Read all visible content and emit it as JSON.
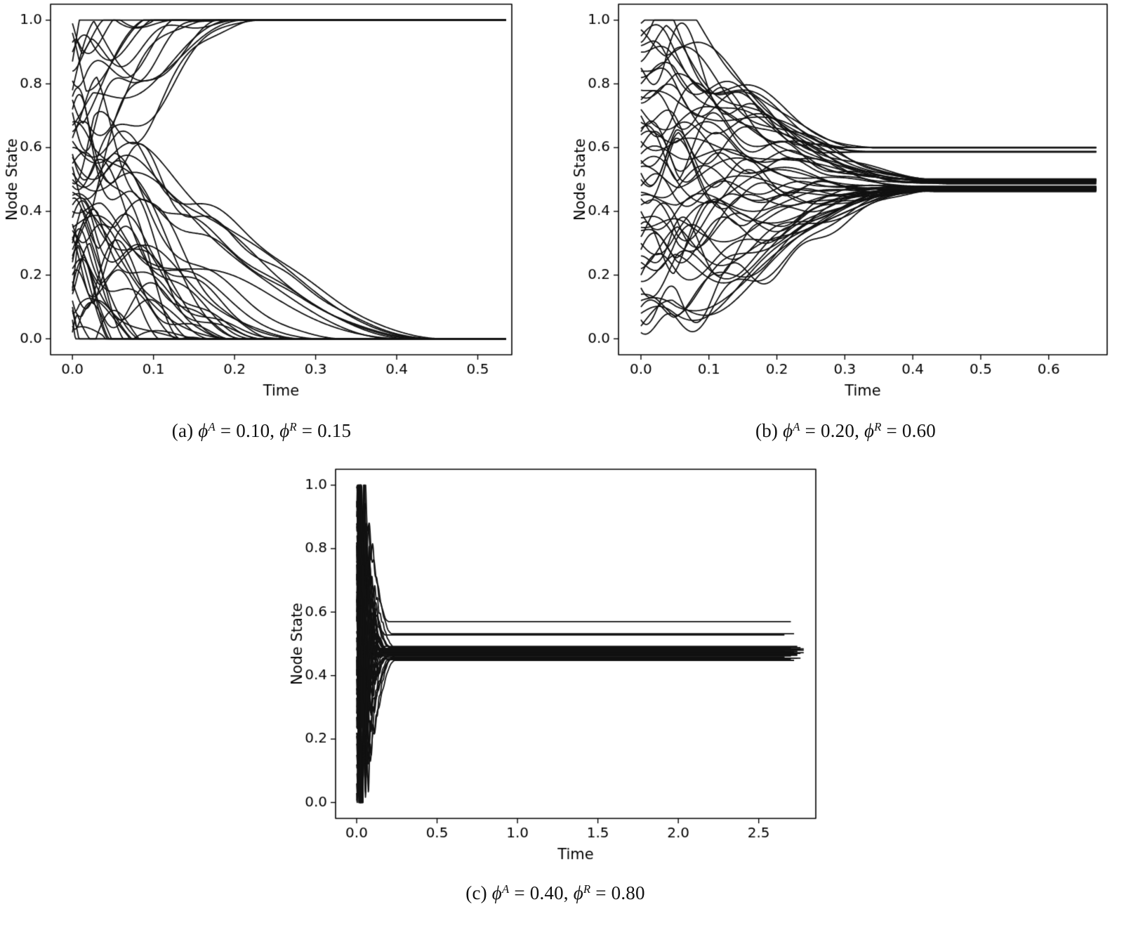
{
  "figure": {
    "background": "#ffffff",
    "text_color": "#000000"
  },
  "chart_data": [
    {
      "type": "line",
      "id": "a",
      "title": "",
      "xlabel": "Time",
      "ylabel": "Node State",
      "xlim": [
        -0.027,
        0.542
      ],
      "ylim": [
        -0.05,
        1.05
      ],
      "xticks": [
        0.0,
        0.1,
        0.2,
        0.3,
        0.4,
        0.5
      ],
      "yticks": [
        0.0,
        0.2,
        0.4,
        0.6,
        0.8,
        1.0
      ],
      "grid": false,
      "legend": "none",
      "caption_segments": [
        {
          "text": "(a) "
        },
        {
          "text": "ϕ",
          "style": "italic"
        },
        {
          "text": "A",
          "style": "sup-italic"
        },
        {
          "text": " = 0.10, "
        },
        {
          "text": "ϕ",
          "style": "italic"
        },
        {
          "text": "R",
          "style": "sup-italic"
        },
        {
          "text": " = 0.15"
        }
      ],
      "style": {
        "color": "#111111",
        "width": 1.8
      },
      "seed": 7,
      "samples": 500,
      "t_end": 0.535,
      "wiggle": {
        "amp": 0.16,
        "tau": 0.085,
        "freq": 48
      },
      "margins": {
        "l": 72,
        "r": 16,
        "t": 6,
        "b": 70
      },
      "trajectories": [
        [
          0.99,
          1,
          0.1
        ],
        [
          0.96,
          1,
          0.14
        ],
        [
          0.93,
          1,
          0.08
        ],
        [
          0.9,
          1,
          0.17
        ],
        [
          0.87,
          1,
          0.12
        ],
        [
          0.84,
          1,
          0.2
        ],
        [
          0.81,
          1,
          0.15
        ],
        [
          0.78,
          1,
          0.22
        ],
        [
          0.75,
          1,
          0.11
        ],
        [
          0.71,
          1,
          0.18
        ],
        [
          0.67,
          1,
          0.21
        ],
        [
          0.63,
          1,
          0.16
        ],
        [
          0.58,
          1,
          0.23
        ],
        [
          0.54,
          1,
          0.19
        ],
        [
          0.49,
          1,
          0.22
        ],
        [
          0.02,
          0,
          0.05
        ],
        [
          0.04,
          0,
          0.09
        ],
        [
          0.06,
          0,
          0.12
        ],
        [
          0.08,
          0,
          0.07
        ],
        [
          0.1,
          0,
          0.15
        ],
        [
          0.12,
          0,
          0.1
        ],
        [
          0.14,
          0,
          0.18
        ],
        [
          0.16,
          0,
          0.13
        ],
        [
          0.18,
          0,
          0.21
        ],
        [
          0.2,
          0,
          0.16
        ],
        [
          0.22,
          0,
          0.24
        ],
        [
          0.24,
          0,
          0.12
        ],
        [
          0.26,
          0,
          0.19
        ],
        [
          0.28,
          0,
          0.26
        ],
        [
          0.3,
          0,
          0.15
        ],
        [
          0.32,
          0,
          0.22
        ],
        [
          0.34,
          0,
          0.28
        ],
        [
          0.36,
          0,
          0.17
        ],
        [
          0.38,
          0,
          0.24
        ],
        [
          0.4,
          0,
          0.3
        ],
        [
          0.42,
          0,
          0.2
        ],
        [
          0.44,
          0,
          0.27
        ],
        [
          0.46,
          0,
          0.33
        ],
        [
          0.48,
          0,
          0.23
        ],
        [
          0.5,
          0,
          0.43
        ],
        [
          0.52,
          0,
          0.4
        ],
        [
          0.55,
          0,
          0.45
        ],
        [
          0.57,
          0,
          0.42
        ],
        [
          0.6,
          0,
          0.46
        ],
        [
          0.62,
          0,
          0.44
        ],
        [
          0.65,
          0,
          0.25
        ],
        [
          0.68,
          0,
          0.21
        ],
        [
          0.72,
          0,
          0.18
        ],
        [
          0.76,
          0,
          0.14
        ],
        [
          0.35,
          0,
          0.41
        ],
        [
          0.45,
          0,
          0.44
        ],
        [
          0.31,
          0,
          0.09
        ],
        [
          0.25,
          0,
          0.07
        ],
        [
          0.15,
          0,
          0.05
        ],
        [
          0.09,
          0,
          0.04
        ]
      ]
    },
    {
      "type": "line",
      "id": "b",
      "title": "",
      "xlabel": "Time",
      "ylabel": "Node State",
      "xlim": [
        -0.033,
        0.686
      ],
      "ylim": [
        -0.05,
        1.05
      ],
      "xticks": [
        0.0,
        0.1,
        0.2,
        0.3,
        0.4,
        0.5,
        0.6
      ],
      "yticks": [
        0.0,
        0.2,
        0.4,
        0.6,
        0.8,
        1.0
      ],
      "grid": false,
      "legend": "none",
      "caption_segments": [
        {
          "text": "(b) "
        },
        {
          "text": "ϕ",
          "style": "italic"
        },
        {
          "text": "A",
          "style": "sup-italic"
        },
        {
          "text": " = 0.20, "
        },
        {
          "text": "ϕ",
          "style": "italic"
        },
        {
          "text": "R",
          "style": "sup-italic"
        },
        {
          "text": " = 0.60"
        }
      ],
      "style": {
        "color": "#111111",
        "width": 1.8
      },
      "seed": 13,
      "samples": 500,
      "t_end": 0.67,
      "wiggle": {
        "amp": 0.13,
        "tau": 0.13,
        "freq": 42
      },
      "margins": {
        "l": 73,
        "r": 24,
        "t": 6,
        "b": 70
      },
      "trajectories": [
        [
          0.99,
          0.6,
          0.32
        ],
        [
          0.97,
          0.601,
          0.3
        ],
        [
          0.95,
          0.599,
          0.34
        ],
        [
          0.92,
          0.6,
          0.28
        ],
        [
          0.9,
          0.588,
          0.33
        ],
        [
          0.87,
          0.587,
          0.31
        ],
        [
          0.84,
          0.5,
          0.42
        ],
        [
          0.82,
          0.498,
          0.44
        ],
        [
          0.8,
          0.502,
          0.4
        ],
        [
          0.78,
          0.497,
          0.45
        ],
        [
          0.76,
          0.495,
          0.43
        ],
        [
          0.74,
          0.499,
          0.46
        ],
        [
          0.72,
          0.493,
          0.41
        ],
        [
          0.7,
          0.49,
          0.44
        ],
        [
          0.68,
          0.488,
          0.42
        ],
        [
          0.66,
          0.486,
          0.45
        ],
        [
          0.64,
          0.496,
          0.43
        ],
        [
          0.62,
          0.501,
          0.4
        ],
        [
          0.6,
          0.478,
          0.44
        ],
        [
          0.58,
          0.476,
          0.46
        ],
        [
          0.56,
          0.474,
          0.42
        ],
        [
          0.54,
          0.472,
          0.45
        ],
        [
          0.52,
          0.47,
          0.43
        ],
        [
          0.5,
          0.468,
          0.46
        ],
        [
          0.48,
          0.478,
          0.41
        ],
        [
          0.46,
          0.475,
          0.44
        ],
        [
          0.44,
          0.472,
          0.42
        ],
        [
          0.42,
          0.47,
          0.45
        ],
        [
          0.4,
          0.467,
          0.43
        ],
        [
          0.38,
          0.465,
          0.46
        ],
        [
          0.36,
          0.464,
          0.4
        ],
        [
          0.34,
          0.462,
          0.43
        ],
        [
          0.32,
          0.466,
          0.45
        ],
        [
          0.3,
          0.47,
          0.42
        ],
        [
          0.28,
          0.474,
          0.44
        ],
        [
          0.26,
          0.478,
          0.41
        ],
        [
          0.24,
          0.468,
          0.43
        ],
        [
          0.22,
          0.472,
          0.45
        ],
        [
          0.2,
          0.476,
          0.4
        ],
        [
          0.18,
          0.47,
          0.42
        ],
        [
          0.16,
          0.466,
          0.44
        ],
        [
          0.14,
          0.472,
          0.41
        ],
        [
          0.12,
          0.468,
          0.43
        ],
        [
          0.1,
          0.474,
          0.4
        ],
        [
          0.08,
          0.47,
          0.42
        ],
        [
          0.06,
          0.466,
          0.44
        ],
        [
          0.04,
          0.472,
          0.39
        ],
        [
          0.02,
          0.468,
          0.41
        ],
        [
          0.93,
          0.586,
          0.29
        ],
        [
          0.85,
          0.588,
          0.32
        ],
        [
          0.75,
          0.496,
          0.44
        ],
        [
          0.65,
          0.492,
          0.42
        ],
        [
          0.55,
          0.473,
          0.44
        ],
        [
          0.45,
          0.469,
          0.43
        ],
        [
          0.35,
          0.471,
          0.45
        ]
      ]
    },
    {
      "type": "line",
      "id": "c",
      "title": "",
      "xlabel": "Time",
      "ylabel": "Node State",
      "xlim": [
        -0.131,
        2.855
      ],
      "ylim": [
        -0.05,
        1.05
      ],
      "xticks": [
        0.0,
        0.5,
        1.0,
        1.5,
        2.0,
        2.5
      ],
      "yticks": [
        0.0,
        0.2,
        0.4,
        0.6,
        0.8,
        1.0
      ],
      "grid": false,
      "legend": "none",
      "caption_segments": [
        {
          "text": "(c) "
        },
        {
          "text": "ϕ",
          "style": "italic"
        },
        {
          "text": "A",
          "style": "sup-italic"
        },
        {
          "text": " = 0.40, "
        },
        {
          "text": "ϕ",
          "style": "italic"
        },
        {
          "text": "R",
          "style": "sup-italic"
        },
        {
          "text": " = 0.80"
        }
      ],
      "style": {
        "color": "#111111",
        "width": 1.8
      },
      "seed": 21,
      "samples": 1400,
      "t_end": 2.7,
      "wiggle": {
        "amp": 0.3,
        "tau": 0.04,
        "freq": 260
      },
      "margins": {
        "l": 72,
        "r": 14,
        "t": 8,
        "b": 70
      },
      "trajectories": [
        [
          0.99,
          0.57,
          0.2,
          2.7
        ],
        [
          0.95,
          0.532,
          0.22,
          2.72
        ],
        [
          0.9,
          0.528,
          0.18,
          2.66
        ],
        [
          0.87,
          0.492,
          0.16,
          2.74
        ],
        [
          0.84,
          0.49,
          0.2,
          2.68
        ],
        [
          0.81,
          0.488,
          0.24,
          2.76
        ],
        [
          0.78,
          0.486,
          0.18,
          2.7
        ],
        [
          0.75,
          0.484,
          0.22,
          2.64
        ],
        [
          0.72,
          0.482,
          0.16,
          2.72
        ],
        [
          0.69,
          0.48,
          0.2,
          2.78
        ],
        [
          0.66,
          0.478,
          0.24,
          2.66
        ],
        [
          0.63,
          0.476,
          0.18,
          2.74
        ],
        [
          0.6,
          0.474,
          0.22,
          2.7
        ],
        [
          0.57,
          0.472,
          0.16,
          2.62
        ],
        [
          0.54,
          0.47,
          0.2,
          2.76
        ],
        [
          0.51,
          0.468,
          0.24,
          2.68
        ],
        [
          0.48,
          0.48,
          0.18,
          2.72
        ],
        [
          0.45,
          0.478,
          0.22,
          2.66
        ],
        [
          0.42,
          0.476,
          0.16,
          2.74
        ],
        [
          0.39,
          0.474,
          0.2,
          2.7
        ],
        [
          0.36,
          0.472,
          0.24,
          2.78
        ],
        [
          0.33,
          0.47,
          0.18,
          2.64
        ],
        [
          0.3,
          0.468,
          0.22,
          2.72
        ],
        [
          0.27,
          0.466,
          0.16,
          2.68
        ],
        [
          0.24,
          0.464,
          0.2,
          2.74
        ],
        [
          0.21,
          0.462,
          0.24,
          2.7
        ],
        [
          0.18,
          0.458,
          0.18,
          2.66
        ],
        [
          0.15,
          0.455,
          0.22,
          2.76
        ],
        [
          0.12,
          0.452,
          0.16,
          2.7
        ],
        [
          0.09,
          0.45,
          0.2,
          2.64
        ],
        [
          0.06,
          0.448,
          0.24,
          2.72
        ],
        [
          0.03,
          0.452,
          0.18,
          2.68
        ],
        [
          0.01,
          0.455,
          0.22,
          2.74
        ],
        [
          0.93,
          0.486,
          0.14,
          2.7
        ],
        [
          0.88,
          0.482,
          0.17,
          2.76
        ],
        [
          0.82,
          0.478,
          0.15,
          2.62
        ],
        [
          0.76,
          0.474,
          0.19,
          2.72
        ],
        [
          0.7,
          0.47,
          0.14,
          2.68
        ],
        [
          0.64,
          0.466,
          0.18,
          2.74
        ],
        [
          0.58,
          0.462,
          0.15,
          2.7
        ],
        [
          0.52,
          0.458,
          0.19,
          2.66
        ],
        [
          0.46,
          0.484,
          0.14,
          2.78
        ],
        [
          0.4,
          0.48,
          0.17,
          2.7
        ],
        [
          0.34,
          0.476,
          0.15,
          2.64
        ],
        [
          0.28,
          0.472,
          0.18,
          2.72
        ],
        [
          0.22,
          0.468,
          0.14,
          2.7
        ]
      ]
    }
  ]
}
